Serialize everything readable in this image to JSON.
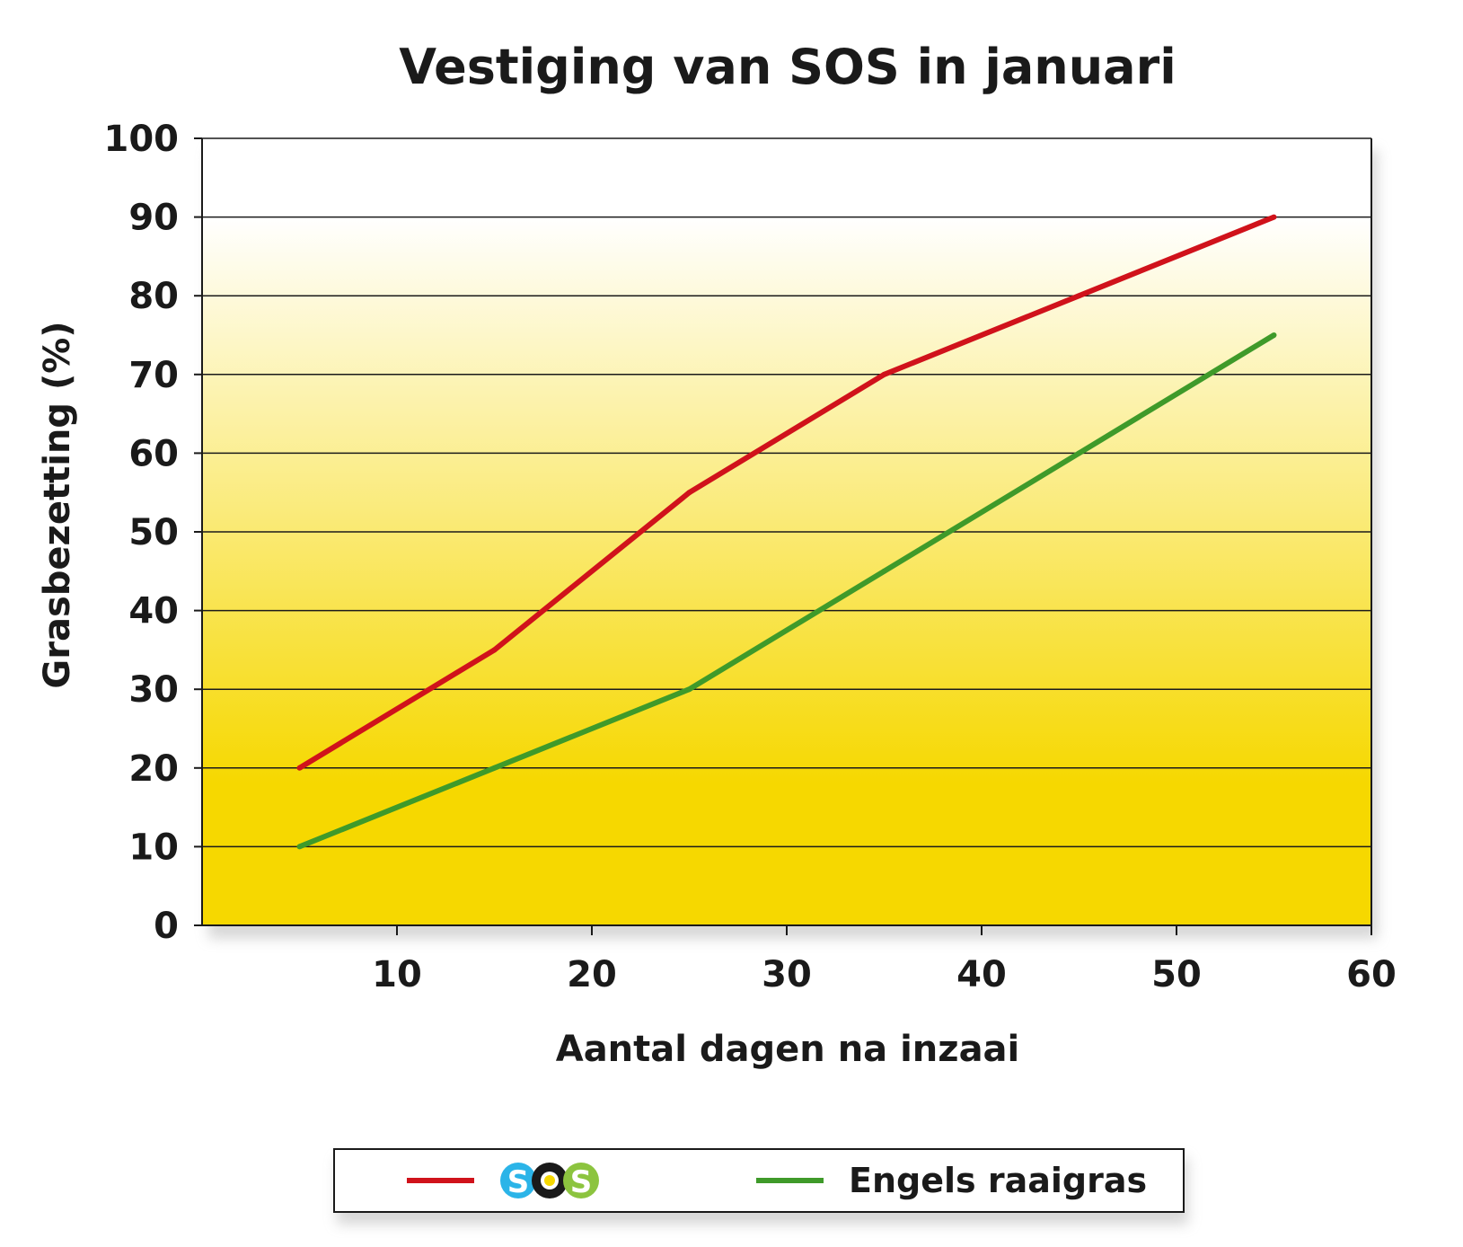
{
  "chart_data": {
    "type": "line",
    "title": "Vestiging van SOS in januari",
    "xlabel": "Aantal dagen na inzaai",
    "ylabel": "Grasbezetting (%)",
    "xlim": [
      0,
      60
    ],
    "ylim": [
      0,
      100
    ],
    "x_ticks": [
      "10",
      "20",
      "30",
      "40",
      "50",
      "60"
    ],
    "y_ticks": [
      "0",
      "10",
      "20",
      "30",
      "40",
      "50",
      "60",
      "70",
      "80",
      "90",
      "100"
    ],
    "grid": true,
    "legend_position": "bottom",
    "series": [
      {
        "name": "SOS",
        "color": "#d0121b",
        "x": [
          5,
          15,
          25,
          35,
          45,
          55
        ],
        "y": [
          20,
          35,
          55,
          70,
          80,
          90
        ]
      },
      {
        "name": "Engels raaigras",
        "color": "#3f9a2a",
        "x": [
          5,
          15,
          25,
          35,
          45,
          55
        ],
        "y": [
          10,
          20,
          30,
          45,
          60,
          75
        ]
      }
    ]
  },
  "colors": {
    "plot_bg_top": "#ffffff",
    "plot_bg_bottom": "#f6d800",
    "logo_blue": "#2bb4e8",
    "logo_black": "#1a1a1a",
    "logo_yellow": "#f6d800",
    "logo_green": "#8cc43f"
  },
  "logo_text": "SOS"
}
